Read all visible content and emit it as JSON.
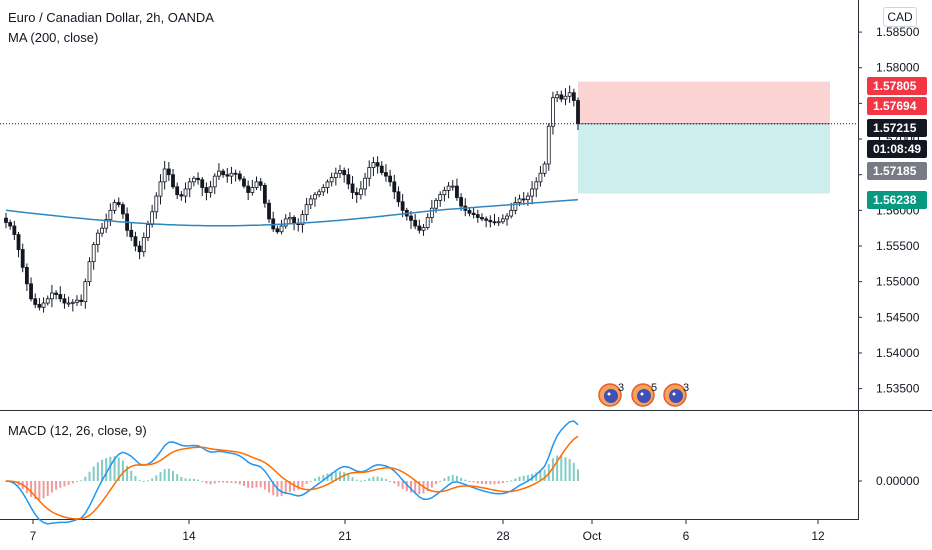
{
  "symbol_title": "Euro / Canadian Dollar, 2h, OANDA",
  "indicator_ma": "MA (200, close)",
  "indicator_macd": "MACD (12, 26, close, 9)",
  "currency_button": "CAD",
  "colors": {
    "up": "#26a69a",
    "down": "#ef5350",
    "candle": "#131722",
    "ma": "#2962ff",
    "macd": "#2196f3",
    "signal": "#ff6d00",
    "risk": "#fbd3d3",
    "reward": "#cdeeec"
  },
  "events": [
    {
      "label": "3",
      "icon": "earth-event-icon"
    },
    {
      "label": "5",
      "icon": "earth-event-icon"
    },
    {
      "label": "3",
      "icon": "earth-event-icon"
    }
  ],
  "chart_data": {
    "type": "candlestick",
    "y_ticks": [
      "1.58500",
      "1.58000",
      "1.57500",
      "1.57000",
      "1.56500",
      "1.56000",
      "1.55500",
      "1.55000",
      "1.54500",
      "1.54000",
      "1.53500"
    ],
    "x_ticks": [
      "7",
      "14",
      "21",
      "28",
      "Oct",
      "6",
      "12"
    ],
    "price_range": [
      1.532,
      1.5895
    ],
    "macd_ticks": [
      "0.00000"
    ],
    "price_tags": [
      {
        "label": "1.57805",
        "value": 1.57805,
        "bg": "#f23645",
        "fg": "#ffffff"
      },
      {
        "label": "1.57694",
        "value": 1.57694,
        "bg": "#f23645",
        "fg": "#ffffff"
      },
      {
        "label": "1.57215",
        "value": 1.57215,
        "bg": "#131722",
        "fg": "#ffffff"
      },
      {
        "label": "01:08:49",
        "value": 1.5688,
        "bg": "#131722",
        "fg": "#ffffff"
      },
      {
        "label": "1.57185",
        "value": 1.5655,
        "bg": "#787b86",
        "fg": "#ffffff"
      },
      {
        "label": "1.56238",
        "value": 1.56238,
        "bg": "#089981",
        "fg": "#ffffff"
      }
    ],
    "position": {
      "entry": 1.57215,
      "stop": 1.57805,
      "target": 1.56238
    },
    "close_series": [
      1.5583,
      1.5578,
      1.5566,
      1.5545,
      1.552,
      1.5497,
      1.5476,
      1.5468,
      1.5464,
      1.547,
      1.5476,
      1.5484,
      1.5482,
      1.5476,
      1.547,
      1.547,
      1.5471,
      1.5474,
      1.5472,
      1.55,
      1.5528,
      1.5552,
      1.5568,
      1.5575,
      1.5587,
      1.56,
      1.5611,
      1.5608,
      1.5595,
      1.5572,
      1.5563,
      1.555,
      1.5542,
      1.5562,
      1.558,
      1.5598,
      1.562,
      1.564,
      1.5658,
      1.565,
      1.5633,
      1.5622,
      1.562,
      1.563,
      1.564,
      1.5645,
      1.5643,
      1.5632,
      1.5625,
      1.5633,
      1.5648,
      1.5655,
      1.565,
      1.5648,
      1.5652,
      1.5651,
      1.5644,
      1.5634,
      1.5625,
      1.5632,
      1.564,
      1.5635,
      1.561,
      1.5588,
      1.5574,
      1.557,
      1.5578,
      1.5588,
      1.559,
      1.5582,
      1.558,
      1.5594,
      1.5608,
      1.5616,
      1.5622,
      1.5626,
      1.5632,
      1.564,
      1.5646,
      1.5652,
      1.5656,
      1.565,
      1.5637,
      1.5625,
      1.5622,
      1.563,
      1.5645,
      1.566,
      1.5667,
      1.5662,
      1.5653,
      1.5648,
      1.564,
      1.5626,
      1.5612,
      1.56,
      1.5592,
      1.5586,
      1.5578,
      1.5572,
      1.5576,
      1.559,
      1.5603,
      1.5614,
      1.5622,
      1.5628,
      1.5634,
      1.5634,
      1.5618,
      1.5606,
      1.56,
      1.5596,
      1.5594,
      1.559,
      1.5588,
      1.5586,
      1.5584,
      1.5583,
      1.5584,
      1.5588,
      1.5592,
      1.56,
      1.5611,
      1.5616,
      1.5615,
      1.562,
      1.563,
      1.564,
      1.5652,
      1.5665,
      1.5718,
      1.5758,
      1.5762,
      1.5756,
      1.576,
      1.5765,
      1.5754,
      1.5722
    ]
  }
}
